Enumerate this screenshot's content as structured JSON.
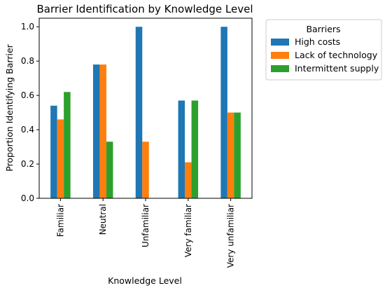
{
  "chart_data": {
    "type": "bar",
    "title": "Barrier Identification by Knowledge Level",
    "xlabel": "Knowledge Level",
    "ylabel": "Proportion Identifying Barrier",
    "ylim": [
      0,
      1.05
    ],
    "yticks": [
      "0.0",
      "0.2",
      "0.4",
      "0.6",
      "0.8",
      "1.0"
    ],
    "categories": [
      "Familiar",
      "Neutral",
      "Unfamiliar",
      "Very familiar",
      "Very unfamiliar"
    ],
    "series": [
      {
        "name": "High costs",
        "color": "#1f77b4",
        "values": [
          0.54,
          0.78,
          1.0,
          0.57,
          1.0
        ]
      },
      {
        "name": "Lack of technology",
        "color": "#ff7f0e",
        "values": [
          0.46,
          0.78,
          0.33,
          0.21,
          0.5
        ]
      },
      {
        "name": "Intermittent supply",
        "color": "#2ca02c",
        "values": [
          0.62,
          0.33,
          0.0,
          0.57,
          0.5
        ]
      }
    ],
    "legend": {
      "title": "Barriers",
      "position": "upper-right-outside"
    },
    "grid": false
  }
}
